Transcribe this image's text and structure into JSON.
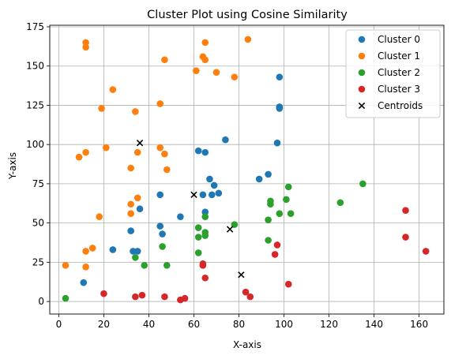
{
  "chart_data": {
    "type": "scatter",
    "title": "Cluster Plot using Cosine Similarity",
    "xlabel": "X-axis",
    "ylabel": "Y-axis",
    "xlim": [
      -4,
      171
    ],
    "ylim": [
      -8,
      176
    ],
    "xticks": [
      0,
      20,
      40,
      60,
      80,
      100,
      120,
      140,
      160
    ],
    "yticks": [
      0,
      25,
      50,
      75,
      100,
      125,
      150,
      175
    ],
    "grid": true,
    "legend_position": "top-right",
    "series": [
      {
        "name": "Cluster 0",
        "color": "#1f77b4",
        "marker": "circle",
        "points": [
          [
            11,
            12
          ],
          [
            24,
            33
          ],
          [
            32,
            45
          ],
          [
            33,
            32
          ],
          [
            35,
            32
          ],
          [
            36,
            59
          ],
          [
            45,
            48
          ],
          [
            45,
            68
          ],
          [
            46,
            43
          ],
          [
            54,
            54
          ],
          [
            62,
            96
          ],
          [
            64,
            68
          ],
          [
            65,
            95
          ],
          [
            65,
            57
          ],
          [
            67,
            78
          ],
          [
            68,
            68
          ],
          [
            69,
            74
          ],
          [
            71,
            69
          ],
          [
            74,
            103
          ],
          [
            89,
            78
          ],
          [
            93,
            81
          ],
          [
            97,
            101
          ],
          [
            98,
            143
          ],
          [
            98,
            123
          ],
          [
            98,
            124
          ]
        ]
      },
      {
        "name": "Cluster 1",
        "color": "#ff7f0e",
        "marker": "circle",
        "points": [
          [
            3,
            23
          ],
          [
            9,
            92
          ],
          [
            12,
            95
          ],
          [
            12,
            32
          ],
          [
            12,
            22
          ],
          [
            12,
            162
          ],
          [
            12,
            165
          ],
          [
            15,
            34
          ],
          [
            18,
            54
          ],
          [
            19,
            123
          ],
          [
            21,
            98
          ],
          [
            24,
            135
          ],
          [
            32,
            85
          ],
          [
            32,
            62
          ],
          [
            32,
            56
          ],
          [
            34,
            121
          ],
          [
            35,
            66
          ],
          [
            35,
            95
          ],
          [
            45,
            98
          ],
          [
            45,
            126
          ],
          [
            47,
            154
          ],
          [
            48,
            84
          ],
          [
            47,
            94
          ],
          [
            61,
            147
          ],
          [
            64,
            156
          ],
          [
            65,
            154
          ],
          [
            65,
            165
          ],
          [
            70,
            146
          ],
          [
            78,
            143
          ],
          [
            84,
            167
          ]
        ]
      },
      {
        "name": "Cluster 2",
        "color": "#2ca02c",
        "marker": "circle",
        "points": [
          [
            3,
            2
          ],
          [
            34,
            28
          ],
          [
            38,
            23
          ],
          [
            46,
            35
          ],
          [
            48,
            23
          ],
          [
            62,
            47
          ],
          [
            62,
            41
          ],
          [
            62,
            31
          ],
          [
            65,
            54
          ],
          [
            65,
            44
          ],
          [
            65,
            42
          ],
          [
            78,
            49
          ],
          [
            93,
            52
          ],
          [
            93,
            39
          ],
          [
            94,
            62
          ],
          [
            94,
            64
          ],
          [
            98,
            56
          ],
          [
            101,
            65
          ],
          [
            102,
            73
          ],
          [
            103,
            56
          ],
          [
            125,
            63
          ],
          [
            135,
            75
          ]
        ]
      },
      {
        "name": "Cluster 3",
        "color": "#d62728",
        "marker": "circle",
        "points": [
          [
            20,
            5
          ],
          [
            34,
            3
          ],
          [
            37,
            4
          ],
          [
            47,
            3
          ],
          [
            54,
            1
          ],
          [
            56,
            2
          ],
          [
            64,
            24
          ],
          [
            64,
            23
          ],
          [
            65,
            15
          ],
          [
            83,
            6
          ],
          [
            85,
            3
          ],
          [
            96,
            30
          ],
          [
            97,
            36
          ],
          [
            102,
            11
          ],
          [
            154,
            58
          ],
          [
            154,
            41
          ],
          [
            163,
            32
          ]
        ]
      },
      {
        "name": "Centroids",
        "color": "#000000",
        "marker": "x",
        "points": [
          [
            36,
            101
          ],
          [
            60,
            68
          ],
          [
            76,
            46
          ],
          [
            81,
            17
          ]
        ]
      }
    ]
  }
}
